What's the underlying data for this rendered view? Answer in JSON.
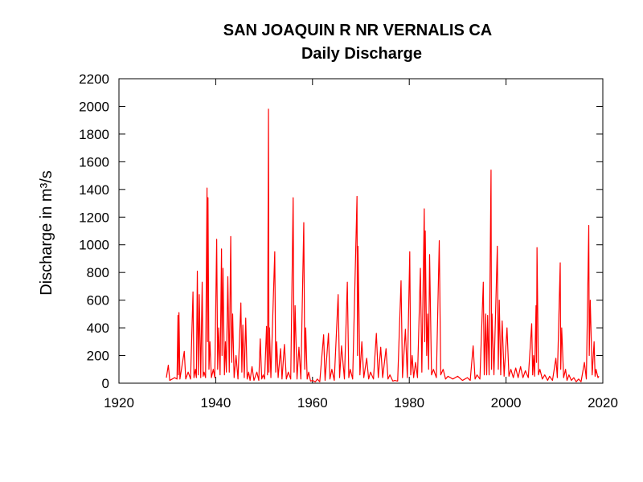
{
  "chart_data": {
    "type": "line",
    "title": "SAN JOAQUIN R NR VERNALIS CA",
    "subtitle": "Daily Discharge",
    "ylabel": "Discharge in m³/s",
    "xlim": [
      1920,
      2020
    ],
    "xticks": [
      1920,
      1940,
      1960,
      1980,
      2000,
      2020
    ],
    "ylim": [
      0,
      2200
    ],
    "yticks": [
      0,
      200,
      400,
      600,
      800,
      1000,
      1200,
      1400,
      1600,
      1800,
      2000,
      2200
    ],
    "grid": false,
    "series": [
      {
        "name": "Daily Discharge",
        "color": "#ff0000",
        "x": [
          1929.8,
          1930.2,
          1930.5,
          1931.5,
          1932,
          1932.2,
          1932.3,
          1932.4,
          1932.6,
          1933.5,
          1933.8,
          1934.3,
          1934.8,
          1935.3,
          1935.5,
          1935.8,
          1936,
          1936.2,
          1936.4,
          1936.6,
          1936.9,
          1937.2,
          1937.4,
          1937.6,
          1937.9,
          1938.2,
          1938.3,
          1938.4,
          1938.6,
          1938.8,
          1939.1,
          1939.5,
          1939.8,
          1940.2,
          1940.4,
          1940.6,
          1940.9,
          1941.2,
          1941.3,
          1941.5,
          1941.8,
          1942,
          1942.2,
          1942.5,
          1942.8,
          1943.1,
          1943.3,
          1943.5,
          1943.8,
          1944.2,
          1944.6,
          1945.2,
          1945.4,
          1945.6,
          1945.9,
          1946.2,
          1946.5,
          1946.8,
          1947.1,
          1947.5,
          1947.9,
          1948.5,
          1948.9,
          1949.2,
          1949.5,
          1949.8,
          1950.1,
          1950.5,
          1950.7,
          1950.9,
          1951,
          1951.1,
          1951.4,
          1952.2,
          1952.4,
          1952.6,
          1952.9,
          1953.4,
          1953.7,
          1954.2,
          1954.6,
          1955,
          1955.5,
          1956,
          1956.2,
          1956.4,
          1956.8,
          1957.2,
          1957.6,
          1958.2,
          1958.4,
          1958.6,
          1958.9,
          1959.2,
          1959.6,
          1960,
          1960.6,
          1961,
          1961.5,
          1962.3,
          1962.6,
          1963.3,
          1963.6,
          1964,
          1964.5,
          1965.3,
          1965.6,
          1966,
          1966.6,
          1967.2,
          1967.5,
          1967.8,
          1968.3,
          1969.2,
          1969.3,
          1969.4,
          1969.8,
          1970.2,
          1970.6,
          1971.2,
          1971.6,
          1972,
          1972.6,
          1973.2,
          1973.6,
          1974.1,
          1974.5,
          1975.2,
          1975.6,
          1976,
          1976.6,
          1977,
          1977.6,
          1978.3,
          1978.6,
          1979.2,
          1979.6,
          1980.1,
          1980.3,
          1980.6,
          1980.9,
          1981.3,
          1981.7,
          1982.3,
          1982.6,
          1983.1,
          1983.2,
          1983.3,
          1983.6,
          1983.8,
          1984,
          1984.2,
          1984.6,
          1985,
          1985.6,
          1986.2,
          1986.5,
          1987,
          1987.5,
          1988,
          1989,
          1990,
          1991,
          1992,
          1992.6,
          1993.2,
          1993.6,
          1994,
          1994.6,
          1995.3,
          1995.5,
          1995.8,
          1996,
          1996.2,
          1996.5,
          1996.9,
          1997,
          1997.1,
          1997.5,
          1998.2,
          1998.4,
          1998.6,
          1998.9,
          1999.2,
          1999.6,
          2000.2,
          2000.6,
          2001,
          2001.5,
          2002,
          2002.5,
          2003,
          2003.5,
          2004,
          2004.6,
          2005.3,
          2005.5,
          2005.7,
          2005.9,
          2006.2,
          2006.3,
          2006.4,
          2006.7,
          2007,
          2007.5,
          2008,
          2008.6,
          2009,
          2009.6,
          2010.3,
          2010.6,
          2011.2,
          2011.3,
          2011.5,
          2011.9,
          2012.3,
          2012.6,
          2013,
          2013.5,
          2014,
          2014.5,
          2015,
          2015.5,
          2016.2,
          2016.6,
          2017.1,
          2017.2,
          2017.4,
          2017.8,
          2018.2,
          2018.4,
          2018.6,
          2019,
          2019.2
        ],
        "values": [
          40,
          130,
          20,
          40,
          30,
          490,
          60,
          510,
          30,
          230,
          30,
          80,
          30,
          660,
          40,
          100,
          40,
          810,
          60,
          640,
          40,
          730,
          50,
          80,
          40,
          1410,
          300,
          1340,
          100,
          300,
          40,
          100,
          40,
          1040,
          100,
          400,
          60,
          970,
          200,
          830,
          60,
          300,
          80,
          770,
          80,
          1060,
          150,
          500,
          40,
          200,
          30,
          580,
          80,
          420,
          40,
          470,
          30,
          80,
          20,
          120,
          20,
          80,
          20,
          320,
          30,
          60,
          30,
          410,
          60,
          1980,
          80,
          400,
          40,
          950,
          80,
          300,
          40,
          250,
          30,
          280,
          30,
          80,
          30,
          1340,
          80,
          560,
          30,
          260,
          30,
          1160,
          100,
          400,
          30,
          80,
          15,
          20,
          10,
          30,
          10,
          350,
          20,
          360,
          30,
          100,
          20,
          640,
          40,
          270,
          30,
          730,
          40,
          100,
          30,
          1350,
          200,
          990,
          60,
          300,
          40,
          180,
          30,
          80,
          30,
          360,
          40,
          260,
          40,
          250,
          30,
          60,
          15,
          20,
          15,
          740,
          40,
          390,
          40,
          950,
          60,
          200,
          40,
          150,
          40,
          830,
          80,
          1260,
          300,
          1100,
          200,
          500,
          100,
          930,
          60,
          100,
          40,
          1030,
          60,
          100,
          30,
          50,
          30,
          50,
          20,
          40,
          20,
          270,
          30,
          60,
          30,
          730,
          60,
          500,
          60,
          490,
          60,
          1540,
          100,
          500,
          60,
          990,
          100,
          600,
          60,
          450,
          50,
          400,
          50,
          100,
          40,
          110,
          40,
          120,
          40,
          90,
          40,
          430,
          60,
          200,
          50,
          560,
          150,
          980,
          60,
          100,
          30,
          60,
          20,
          50,
          20,
          180,
          40,
          870,
          100,
          400,
          40,
          100,
          20,
          60,
          20,
          40,
          10,
          30,
          10,
          150,
          30,
          1140,
          200,
          600,
          60,
          300,
          50,
          100,
          40,
          50
        ]
      }
    ]
  }
}
